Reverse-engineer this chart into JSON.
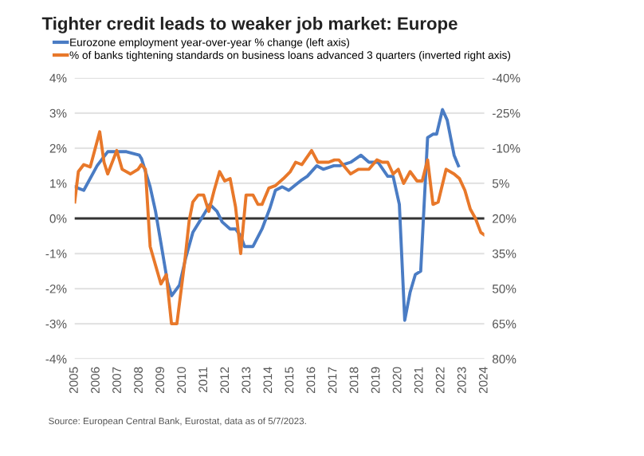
{
  "chart_data": {
    "type": "line",
    "title": "Tighter credit leads to weaker job market: Europe",
    "series": [
      {
        "name": "Eurozone employment year-over-year % change (left axis)",
        "color": "#4a7cc4",
        "x": [
          2005.0,
          2005.42,
          2006.04,
          2006.53,
          2007.4,
          2008.0,
          2008.1,
          2008.5,
          2008.75,
          2009.0,
          2009.3,
          2009.5,
          2009.86,
          2010.16,
          2010.48,
          2010.98,
          2011.27,
          2011.6,
          2011.84,
          2012.21,
          2012.46,
          2012.7,
          2012.88,
          2013.27,
          2013.69,
          2014.06,
          2014.31,
          2014.63,
          2014.93,
          2015.54,
          2015.79,
          2016.23,
          2016.53,
          2017.02,
          2017.3,
          2017.8,
          2018.28,
          2018.65,
          2019.07,
          2019.52,
          2019.77,
          2020.06,
          2020.31,
          2020.56,
          2020.8,
          2021.05,
          2021.37,
          2021.62,
          2021.79,
          2022.06,
          2022.28,
          2022.6,
          2022.8
        ],
        "values": [
          0.9,
          0.8,
          1.5,
          1.9,
          1.9,
          1.8,
          1.7,
          0.9,
          0.2,
          -0.7,
          -1.8,
          -2.2,
          -1.9,
          -1.1,
          -0.4,
          0.1,
          0.4,
          0.2,
          -0.1,
          -0.3,
          -0.3,
          -0.5,
          -0.8,
          -0.8,
          -0.3,
          0.3,
          0.8,
          0.9,
          0.8,
          1.1,
          1.2,
          1.5,
          1.4,
          1.5,
          1.5,
          1.6,
          1.8,
          1.6,
          1.6,
          1.2,
          1.2,
          0.4,
          -2.9,
          -2.1,
          -1.6,
          -1.5,
          2.3,
          2.4,
          2.4,
          3.1,
          2.8,
          1.8,
          1.5
        ]
      },
      {
        "name": "% of banks tightening standards on business loans advanced 3 quarters (inverted right axis)",
        "color": "#e8782a",
        "axis": "y2",
        "x": [
          2005.0,
          2005.17,
          2005.42,
          2005.72,
          2006.16,
          2006.36,
          2006.53,
          2006.95,
          2007.2,
          2007.59,
          2007.94,
          2008.09,
          2008.28,
          2008.5,
          2009.0,
          2009.25,
          2009.49,
          2009.74,
          2010.11,
          2010.31,
          2010.48,
          2010.73,
          2010.98,
          2011.22,
          2011.47,
          2011.72,
          2011.96,
          2012.21,
          2012.46,
          2012.7,
          2012.95,
          2013.27,
          2013.5,
          2013.69,
          2014.01,
          2014.31,
          2014.68,
          2015.0,
          2015.25,
          2015.54,
          2015.99,
          2016.28,
          2016.78,
          2017.05,
          2017.25,
          2017.8,
          2018.16,
          2018.65,
          2019.02,
          2019.27,
          2019.52,
          2019.77,
          2020.01,
          2020.26,
          2020.56,
          2020.88,
          2021.12,
          2021.37,
          2021.62,
          2021.86,
          2022.23,
          2022.6,
          2022.85,
          2023.1,
          2023.35,
          2023.59,
          2023.84,
          2024.0
        ],
        "values": [
          13,
          0,
          -3,
          -2,
          -17,
          -4,
          1,
          -9,
          -1,
          1,
          -1,
          -3,
          -1,
          32,
          48,
          44,
          65,
          65,
          38,
          21,
          13,
          10,
          10,
          17,
          8,
          0,
          4,
          3,
          15,
          35,
          10,
          10,
          14,
          14,
          7,
          6,
          3,
          0,
          -4,
          -3,
          -9,
          -4,
          -4,
          -5,
          -5,
          1,
          -1,
          -1,
          -5,
          -4,
          -4,
          1,
          -1,
          5,
          0,
          4,
          4,
          -5,
          14,
          13,
          -1,
          1,
          3,
          8,
          16,
          20,
          26,
          27
        ]
      }
    ],
    "xlim": [
      2005,
      2024
    ],
    "xticks": [
      2005,
      2006,
      2007,
      2008,
      2009,
      2010,
      2011,
      2012,
      2013,
      2014,
      2015,
      2016,
      2017,
      2018,
      2019,
      2020,
      2021,
      2022,
      2023,
      2024
    ],
    "ylim": [
      -4,
      4
    ],
    "yticks": [
      {
        "value": -4,
        "label": "-4%"
      },
      {
        "value": -3,
        "label": "-3%"
      },
      {
        "value": -2,
        "label": "-2%"
      },
      {
        "value": -1,
        "label": "-1%"
      },
      {
        "value": 0,
        "label": "0%"
      },
      {
        "value": 1,
        "label": "1%"
      },
      {
        "value": 2,
        "label": "2%"
      },
      {
        "value": 3,
        "label": "3%"
      },
      {
        "value": 4,
        "label": "4%"
      }
    ],
    "y2lim": [
      80,
      -40
    ],
    "y2ticks": [
      {
        "value": 80,
        "label": "80%"
      },
      {
        "value": 65,
        "label": "65%"
      },
      {
        "value": 50,
        "label": "50%"
      },
      {
        "value": 35,
        "label": "35%"
      },
      {
        "value": 20,
        "label": "20%"
      },
      {
        "value": 5,
        "label": "5%"
      },
      {
        "value": -10,
        "label": "-10%"
      },
      {
        "value": -25,
        "label": "-25%"
      },
      {
        "value": -40,
        "label": "-40%"
      }
    ],
    "ref_lines": [
      {
        "axis": "y",
        "value": 0,
        "color": "#333333"
      }
    ],
    "grid": "y",
    "legend": "top left",
    "annotations": [
      "Source: European Central Bank, Eurostat, data as of 5/7/2023."
    ]
  }
}
